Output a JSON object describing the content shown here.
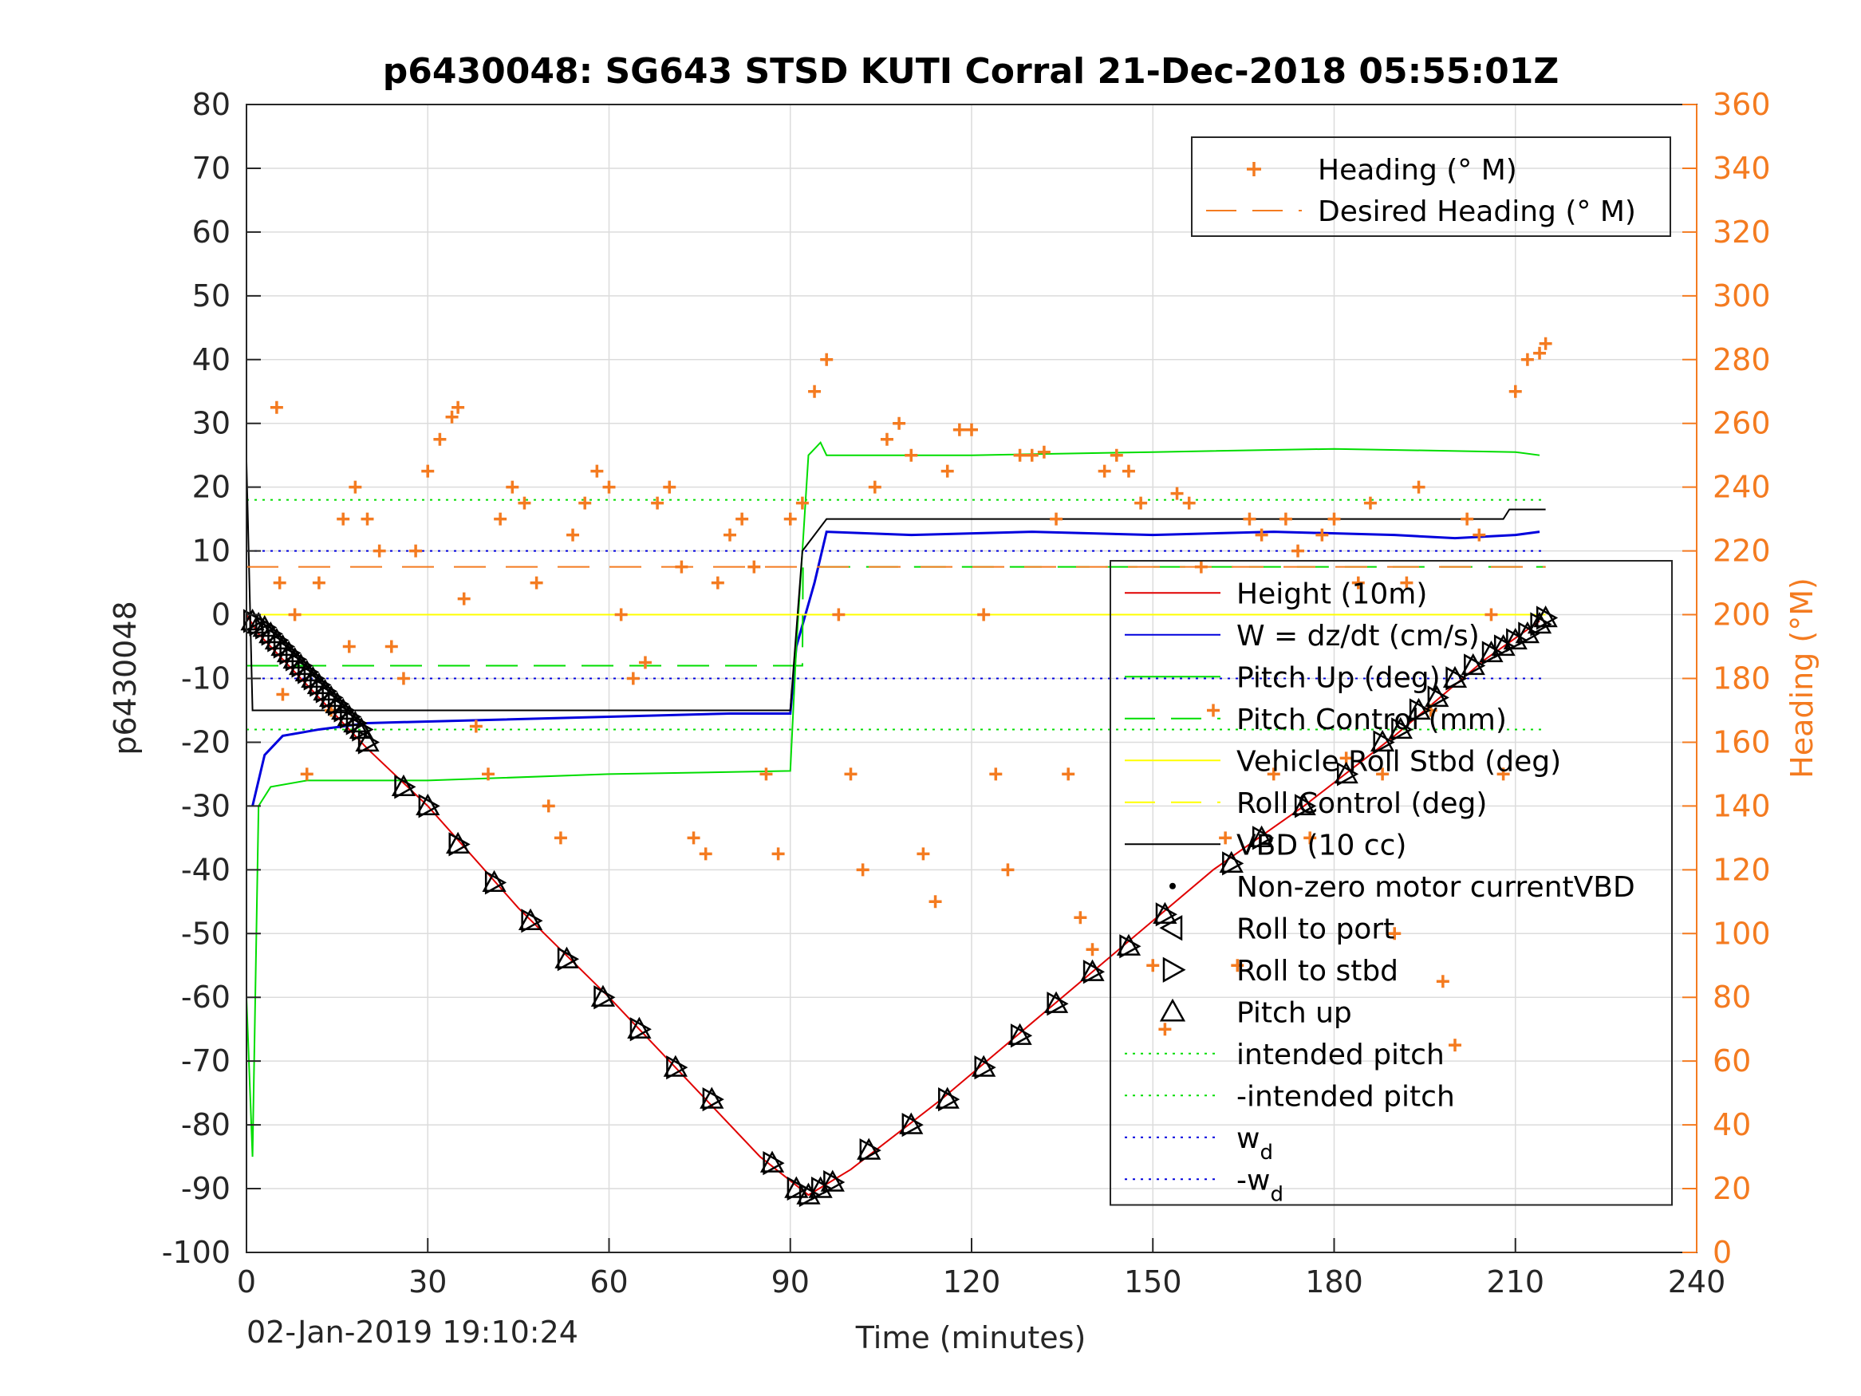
{
  "chart_data": {
    "type": "line",
    "title": "p6430048: SG643 STSD KUTI Corral 21-Dec-2018 05:55:01Z",
    "xlabel": "Time (minutes)",
    "ylabel_left": "p6430048",
    "ylabel_right": "Heading (°M)",
    "xlim": [
      0,
      240
    ],
    "ylim_left": [
      -100,
      80
    ],
    "ylim_right": [
      0,
      360
    ],
    "xticks": [
      0,
      30,
      60,
      90,
      120,
      150,
      180,
      210,
      240
    ],
    "yticks_left": [
      80,
      70,
      60,
      50,
      40,
      30,
      20,
      10,
      0,
      -10,
      -20,
      -30,
      -40,
      -50,
      -60,
      -70,
      -80,
      -90,
      -100
    ],
    "yticks_right": [
      360,
      340,
      320,
      300,
      280,
      260,
      240,
      220,
      200,
      180,
      160,
      140,
      120,
      100,
      80,
      60,
      40,
      20,
      0
    ],
    "grid": true,
    "colors": {
      "axis": "#262626",
      "heading": "#F47B20",
      "height": "#E00000",
      "w": "#0000DD",
      "pitch": "#00DD00",
      "roll": "#FFFF00",
      "vbd": "#000000",
      "grid": "#DCDCDC"
    },
    "legend_heading": [
      {
        "label": "Heading (° M)",
        "marker": "plus",
        "color": "#F47B20"
      },
      {
        "label": "Desired Heading (° M)",
        "marker": "dash",
        "color": "#F47B20"
      }
    ],
    "legend_main": [
      {
        "label": "Height (10m)",
        "marker": "line",
        "color": "#E00000"
      },
      {
        "label": "W = dz/dt (cm/s)",
        "marker": "line",
        "color": "#0000DD"
      },
      {
        "label": "Pitch Up (deg)",
        "marker": "line",
        "color": "#00DD00"
      },
      {
        "label": "Pitch Control (mm)",
        "marker": "dash",
        "color": "#00DD00"
      },
      {
        "label": "Vehicle Roll Stbd (deg)",
        "marker": "line",
        "color": "#FFFF00"
      },
      {
        "label": "Roll Control (deg)",
        "marker": "dash",
        "color": "#FFFF00"
      },
      {
        "label": "VBD (10 cc)",
        "marker": "line",
        "color": "#000000"
      },
      {
        "label": "Non-zero motor currentVBD",
        "marker": "dot",
        "color": "#000000"
      },
      {
        "label": "Roll to port",
        "marker": "tri-left",
        "color": "#000000"
      },
      {
        "label": "Roll to stbd",
        "marker": "tri-right",
        "color": "#000000"
      },
      {
        "label": "Pitch up",
        "marker": "tri-up",
        "color": "#000000"
      },
      {
        "label": "intended pitch",
        "marker": "dotted",
        "color": "#00DD00"
      },
      {
        "label": "-intended pitch",
        "marker": "dotted",
        "color": "#00DD00"
      },
      {
        "label": "w",
        "sub": "d",
        "marker": "dotted",
        "color": "#0000DD"
      },
      {
        "label": "-w",
        "sub": "d",
        "marker": "dotted",
        "color": "#0000DD"
      }
    ],
    "reference_lines": {
      "intended_pitch": 18,
      "minus_intended_pitch": -18,
      "w_d": 10,
      "minus_w_d": -10
    },
    "series": [
      {
        "name": "Height (10m)",
        "axis": "left",
        "x": [
          0,
          2,
          10,
          20,
          30,
          45,
          60,
          75,
          85,
          93,
          100,
          115,
          130,
          145,
          160,
          175,
          190,
          205,
          214
        ],
        "y": [
          0,
          -3,
          -11,
          -21,
          -30,
          -46,
          -60,
          -75,
          -85,
          -91,
          -87,
          -76,
          -64,
          -52,
          -40,
          -30,
          -19,
          -7,
          -1
        ]
      },
      {
        "name": "W = dz/dt (cm/s)",
        "axis": "left",
        "x": [
          1,
          3,
          6,
          12,
          20,
          40,
          60,
          80,
          90,
          91,
          94,
          96,
          110,
          130,
          150,
          170,
          190,
          200,
          210,
          214
        ],
        "y": [
          -30,
          -22,
          -19,
          -18,
          -17,
          -16.5,
          -16,
          -15.5,
          -15.5,
          -5,
          5,
          13,
          12.5,
          13,
          12.5,
          13,
          12.5,
          12,
          12.5,
          13
        ]
      },
      {
        "name": "Pitch Up (deg)",
        "axis": "left",
        "x": [
          0,
          1,
          2,
          4,
          10,
          30,
          60,
          90,
          91,
          93,
          95,
          96,
          120,
          150,
          180,
          210,
          214
        ],
        "y": [
          -60,
          -85,
          -30,
          -27,
          -26,
          -26,
          -25,
          -24.5,
          -5,
          25,
          27,
          25,
          25,
          25.5,
          26,
          25.5,
          25
        ]
      },
      {
        "name": "Pitch Control (mm)",
        "axis": "left",
        "x": [
          0,
          92,
          92.1,
          215
        ],
        "y": [
          -8,
          -8,
          7.5,
          7.5
        ]
      },
      {
        "name": "VBD (10 cc)",
        "axis": "left",
        "x": [
          0,
          1,
          2,
          90,
          92,
          96,
          208,
          209,
          215
        ],
        "y": [
          24,
          -15,
          -15,
          -15,
          10,
          15,
          15,
          16.5,
          16.5
        ]
      },
      {
        "name": "Roll Control (deg)",
        "axis": "left",
        "x": [
          0,
          215
        ],
        "y": [
          0,
          0
        ]
      },
      {
        "name": "Heading (° M)",
        "axis": "right",
        "marker": "plus",
        "x": [
          5,
          5.5,
          6,
          8,
          10,
          12,
          14,
          16,
          17,
          18,
          20,
          22,
          24,
          26,
          28,
          30,
          32,
          34,
          35,
          36,
          38,
          40,
          42,
          44,
          46,
          48,
          50,
          52,
          54,
          56,
          58,
          60,
          62,
          64,
          66,
          68,
          70,
          72,
          74,
          76,
          78,
          80,
          82,
          84,
          86,
          88,
          90,
          92,
          94,
          96,
          98,
          100,
          102,
          104,
          106,
          108,
          110,
          112,
          114,
          116,
          118,
          120,
          122,
          124,
          126,
          128,
          130,
          132,
          134,
          136,
          138,
          140,
          142,
          144,
          146,
          148,
          150,
          152,
          154,
          156,
          158,
          160,
          162,
          164,
          166,
          168,
          170,
          172,
          174,
          176,
          178,
          180,
          182,
          184,
          186,
          188,
          190,
          192,
          194,
          196,
          198,
          200,
          202,
          204,
          206,
          208,
          210,
          212,
          214,
          215
        ],
        "y": [
          265,
          210,
          175,
          200,
          150,
          210,
          170,
          230,
          190,
          240,
          230,
          220,
          190,
          180,
          220,
          245,
          255,
          262,
          265,
          205,
          165,
          150,
          230,
          240,
          235,
          210,
          140,
          130,
          225,
          235,
          245,
          240,
          200,
          180,
          185,
          235,
          240,
          215,
          130,
          125,
          210,
          225,
          230,
          215,
          150,
          125,
          230,
          235,
          270,
          280,
          200,
          150,
          120,
          240,
          255,
          260,
          250,
          125,
          110,
          245,
          258,
          258,
          200,
          150,
          120,
          250,
          250,
          251,
          230,
          150,
          105,
          95,
          245,
          250,
          245,
          235,
          90,
          70,
          238,
          235,
          215,
          170,
          130,
          90,
          230,
          225,
          150,
          230,
          220,
          130,
          225,
          230,
          155,
          210,
          235,
          150,
          100,
          210,
          240,
          170,
          85,
          65,
          230,
          225,
          200,
          150,
          270,
          280,
          282,
          285
        ]
      },
      {
        "name": "Desired Heading (° M)",
        "axis": "right",
        "marker": "dash",
        "x": [
          0,
          215
        ],
        "y": [
          215,
          215
        ]
      }
    ],
    "event_markers": {
      "x": [
        1,
        2,
        3,
        4,
        5,
        6,
        7,
        8,
        9,
        10,
        11,
        12,
        13,
        14,
        15,
        16,
        17,
        18,
        19,
        20,
        26,
        30,
        35,
        41,
        47,
        53,
        59,
        65,
        71,
        77,
        87,
        91,
        93,
        95,
        97,
        103,
        110,
        116,
        122,
        128,
        134,
        140,
        146,
        152,
        163,
        168,
        175,
        182,
        188,
        191,
        194,
        197,
        200,
        203,
        206,
        208,
        210,
        212,
        214,
        215
      ],
      "y": [
        -1,
        -1.5,
        -2,
        -3,
        -4,
        -5,
        -6,
        -7,
        -8,
        -9,
        -10,
        -11,
        -12,
        -13,
        -14,
        -15,
        -16,
        -17,
        -18,
        -20,
        -27,
        -30,
        -36,
        -42,
        -48,
        -54,
        -60,
        -65,
        -71,
        -76,
        -86,
        -90,
        -91,
        -90,
        -89,
        -84,
        -80,
        -76,
        -71,
        -66,
        -61,
        -56,
        -52,
        -47,
        -39,
        -35,
        -30,
        -25,
        -20,
        -18,
        -15,
        -13,
        -10,
        -8,
        -6,
        -5,
        -4,
        -3,
        -1.5,
        -0.5
      ]
    }
  },
  "footer_timestamp": "02-Jan-2019 19:10:24"
}
